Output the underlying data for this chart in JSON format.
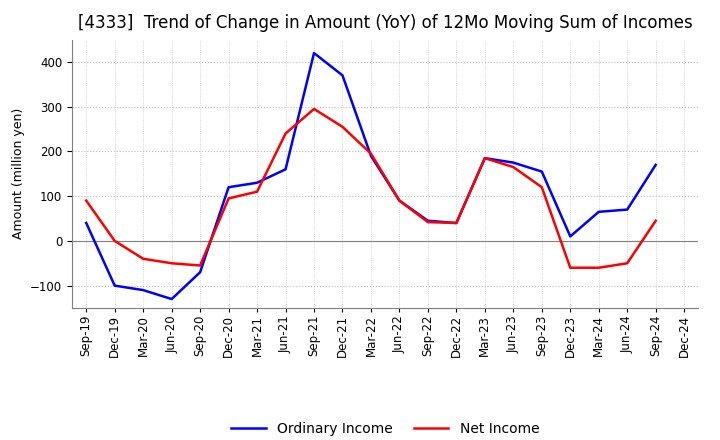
{
  "title": "[4333]  Trend of Change in Amount (YoY) of 12Mo Moving Sum of Incomes",
  "ylabel": "Amount (million yen)",
  "labels": [
    "Sep-19",
    "Dec-19",
    "Mar-20",
    "Jun-20",
    "Sep-20",
    "Dec-20",
    "Mar-21",
    "Jun-21",
    "Sep-21",
    "Dec-21",
    "Mar-22",
    "Jun-22",
    "Sep-22",
    "Dec-22",
    "Mar-23",
    "Jun-23",
    "Sep-23",
    "Dec-23",
    "Mar-24",
    "Jun-24",
    "Sep-24",
    "Dec-24"
  ],
  "ordinary_income": [
    40,
    -100,
    -110,
    -130,
    -70,
    120,
    130,
    160,
    420,
    370,
    190,
    90,
    45,
    40,
    185,
    175,
    155,
    10,
    65,
    70,
    170,
    null
  ],
  "net_income": [
    90,
    0,
    -40,
    -50,
    -55,
    95,
    110,
    240,
    295,
    255,
    195,
    90,
    42,
    40,
    185,
    165,
    120,
    -60,
    -60,
    -50,
    45,
    null
  ],
  "ordinary_color": "#0000ff",
  "net_color": "#ff0000",
  "ylim": [
    -150,
    450
  ],
  "yticks": [
    -100,
    0,
    100,
    200,
    300,
    400
  ],
  "grid_color": "#bbbbbb",
  "background_color": "#ffffff",
  "title_fontsize": 12,
  "axis_fontsize": 9,
  "tick_fontsize": 8.5,
  "legend_fontsize": 10,
  "line_width": 1.8
}
